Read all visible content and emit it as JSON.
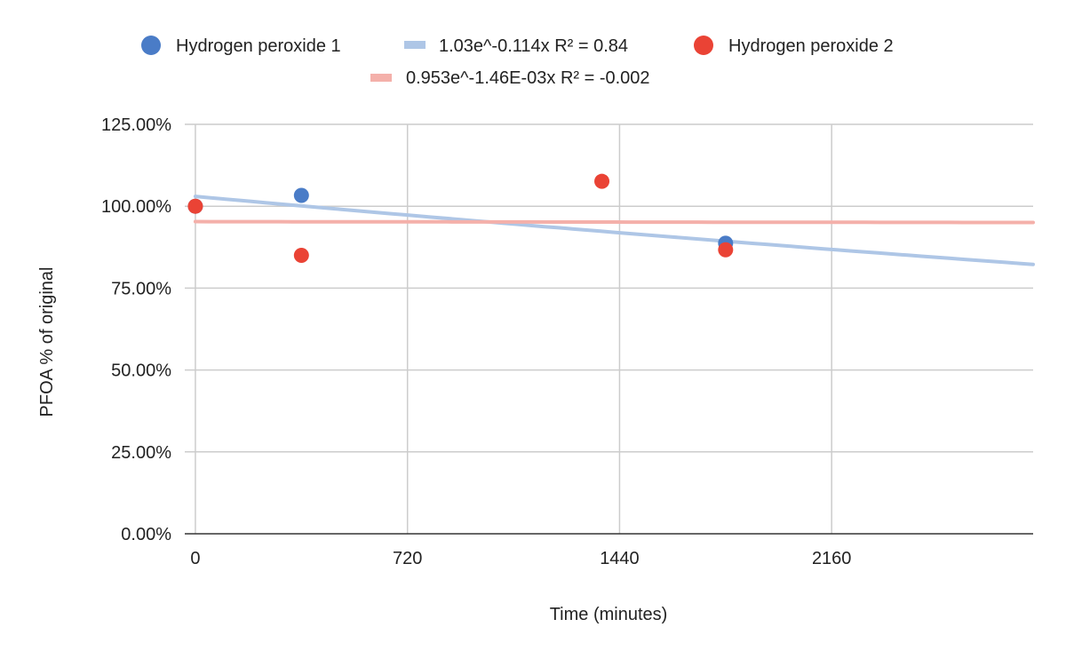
{
  "chart_data": {
    "type": "scatter",
    "title": "",
    "xlabel": "Time (minutes)",
    "ylabel": "PFOA % of original",
    "xlim": [
      -36,
      2844
    ],
    "ylim": [
      0,
      1.25
    ],
    "x_ticks": [
      0,
      720,
      1440,
      2160
    ],
    "x_tick_labels": [
      "0",
      "720",
      "1440",
      "2160"
    ],
    "y_ticks": [
      0,
      0.25,
      0.5,
      0.75,
      1.0,
      1.25
    ],
    "y_tick_labels": [
      "0.00%",
      "25.00%",
      "50.00%",
      "75.00%",
      "100.00%",
      "125.00%"
    ],
    "grid": true,
    "legend_position": "top",
    "series": [
      {
        "name": "Hydrogen peroxide 1",
        "color": "#4a7cc7",
        "points": [
          {
            "x": 0,
            "y": 1.0
          },
          {
            "x": 360,
            "y": 1.033
          },
          {
            "x": 1800,
            "y": 0.887
          }
        ]
      },
      {
        "name": "Hydrogen peroxide 2",
        "color": "#ea4335",
        "points": [
          {
            "x": 0,
            "y": 1.0
          },
          {
            "x": 360,
            "y": 0.85
          },
          {
            "x": 1380,
            "y": 1.076
          },
          {
            "x": 1800,
            "y": 0.867
          }
        ]
      }
    ],
    "trendlines": [
      {
        "label": "1.03e^-0.114x R² = 0.84",
        "color": "#aec6e6",
        "a": 1.03,
        "b_per_day": -0.114,
        "x_range": [
          0,
          2844
        ]
      },
      {
        "label": "0.953e^-1.46E-03x R² = -0.002",
        "color": "#f4b0aa",
        "a": 0.953,
        "b_per_day": -0.00146,
        "x_range": [
          0,
          2844
        ]
      }
    ]
  }
}
